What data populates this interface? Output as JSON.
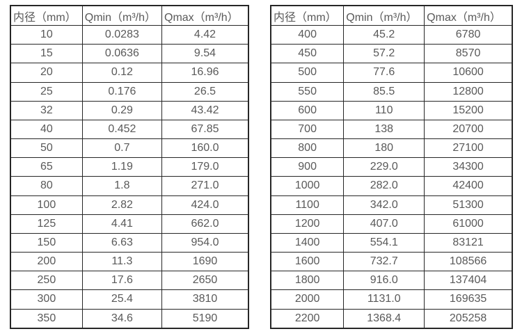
{
  "colors": {
    "border": "#262626",
    "text": "#595959",
    "background": "#ffffff"
  },
  "chart_data": [
    {
      "type": "table",
      "name": "flow-rate-table-small-diameters",
      "columns": [
        "内径（mm）",
        "Qmin（m³/h）",
        "Qmax（m³/h）"
      ],
      "rows": [
        [
          "10",
          "0.0283",
          "4.42"
        ],
        [
          "15",
          "0.0636",
          "9.54"
        ],
        [
          "20",
          "0.12",
          "16.96"
        ],
        [
          "25",
          "0.176",
          "26.5"
        ],
        [
          "32",
          "0.29",
          "43.42"
        ],
        [
          "40",
          "0.452",
          "67.85"
        ],
        [
          "50",
          "0.7",
          "160.0"
        ],
        [
          "65",
          "1.19",
          "179.0"
        ],
        [
          "80",
          "1.8",
          "271.0"
        ],
        [
          "100",
          "2.82",
          "424.0"
        ],
        [
          "125",
          "4.41",
          "662.0"
        ],
        [
          "150",
          "6.63",
          "954.0"
        ],
        [
          "200",
          "11.3",
          "1690"
        ],
        [
          "250",
          "17.6",
          "2650"
        ],
        [
          "300",
          "25.4",
          "3810"
        ],
        [
          "350",
          "34.6",
          "5190"
        ]
      ]
    },
    {
      "type": "table",
      "name": "flow-rate-table-large-diameters",
      "columns": [
        "内径（mm）",
        "Qmin（m³/h）",
        "Qmax（m³/h）"
      ],
      "rows": [
        [
          "400",
          "45.2",
          "6780"
        ],
        [
          "450",
          "57.2",
          "8570"
        ],
        [
          "500",
          "77.6",
          "10600"
        ],
        [
          "550",
          "85.5",
          "12800"
        ],
        [
          "600",
          "110",
          "15200"
        ],
        [
          "700",
          "138",
          "20700"
        ],
        [
          "800",
          "180",
          "27100"
        ],
        [
          "900",
          "229.0",
          "34300"
        ],
        [
          "1000",
          "282.0",
          "42400"
        ],
        [
          "1100",
          "342.0",
          "51300"
        ],
        [
          "1200",
          "407.0",
          "61000"
        ],
        [
          "1400",
          "554.1",
          "83121"
        ],
        [
          "1600",
          "732.7",
          "108566"
        ],
        [
          "1800",
          "916.0",
          "137404"
        ],
        [
          "2000",
          "1131.0",
          "169635"
        ],
        [
          "2200",
          "1368.4",
          "205258"
        ]
      ]
    }
  ]
}
